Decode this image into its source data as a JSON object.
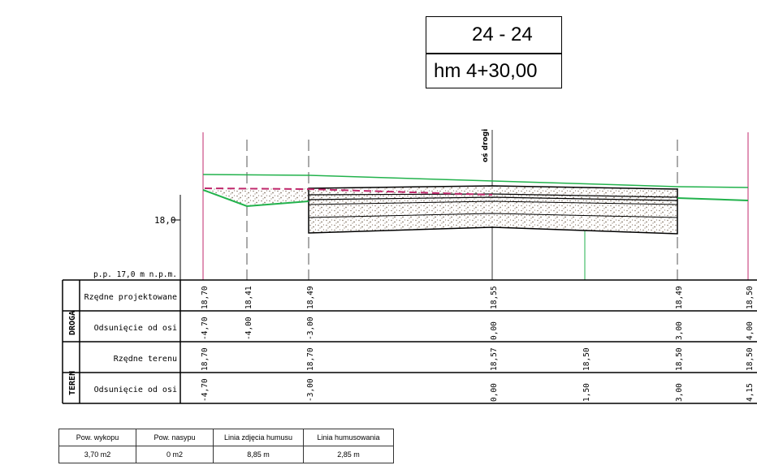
{
  "header": {
    "title": "24 - 24",
    "station": "hm 4+30,00"
  },
  "profile": {
    "axis_label": "oś drogi",
    "elevation_tick": "18,0",
    "datum_label": "p.p. 17,0 m n.p.m."
  },
  "table": {
    "group_droga": "DROGA",
    "group_teren": "TEREN",
    "row_design_elev": "Rzędne projektowane",
    "row_offset_road": "Odsunięcie od osi",
    "row_terrain_elev": "Rzędne terenu",
    "row_offset_terrain": "Odsunięcie od osi",
    "design_values": [
      "18,70",
      "18,41",
      "18,49",
      "18,55",
      "18,49",
      "18,50"
    ],
    "road_offsets": [
      "-4,70",
      "-4,00",
      "-3,00",
      "0,00",
      "3,00",
      "4,00"
    ],
    "terrain_values": [
      "18,70",
      "18,70",
      "18,57",
      "18,50",
      "18,50",
      "18,50"
    ],
    "terrain_offsets": [
      "-4,70",
      "-3,00",
      "0,00",
      "1,50",
      "3,00",
      "4,15"
    ]
  },
  "summary": {
    "headers": [
      "Pow. wykopu",
      "Pow. nasypu",
      "Linia zdjęcia humusu",
      "Linia humusowania"
    ],
    "values": [
      "3,70 m2",
      "0 m2",
      "8,85 m",
      "2,85 m"
    ]
  },
  "colors": {
    "terrain": "#22b24c",
    "cut_line": "#c0286c",
    "structure": "#000000",
    "fill": "#8a7a6a"
  }
}
